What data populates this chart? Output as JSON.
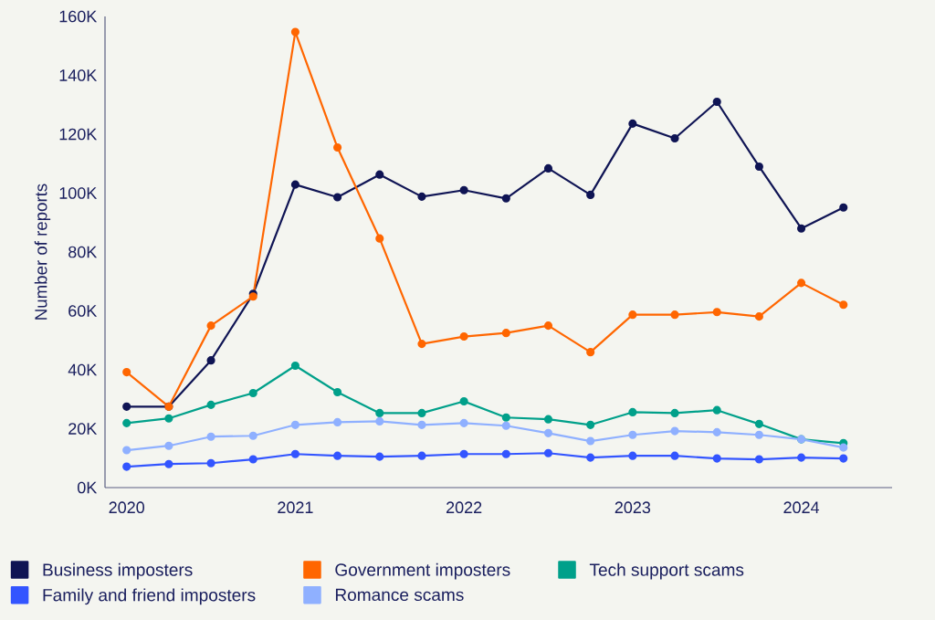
{
  "chart_data": {
    "type": "line",
    "ylabel": "Number of reports",
    "x": [
      "2020-01",
      "2020-04",
      "2020-07",
      "2020-10",
      "2021-01",
      "2021-04",
      "2021-07",
      "2021-10",
      "2022-01",
      "2022-04",
      "2022-07",
      "2022-10",
      "2023-01",
      "2023-04",
      "2023-07",
      "2023-10",
      "2024-01",
      "2024-04"
    ],
    "series": [
      {
        "name": "Business imposters",
        "color": "#0f1454",
        "values": [
          27.5,
          27.5,
          43.2,
          65.8,
          102.9,
          98.6,
          106.3,
          98.8,
          101,
          98.2,
          108.4,
          99.4,
          123.6,
          118.6,
          131,
          109,
          88,
          95.1
        ]
      },
      {
        "name": "Government imposters",
        "color": "#ff6600",
        "values": [
          39.2,
          27.5,
          55,
          64.9,
          154.7,
          115.5,
          84.6,
          48.8,
          51.3,
          52.5,
          55,
          46,
          58.7,
          58.7,
          59.6,
          58.1,
          69.5,
          62.1
        ]
      },
      {
        "name": "Tech support scams",
        "color": "#00a08a",
        "values": [
          21.9,
          23.5,
          28.1,
          32.1,
          41.4,
          32.4,
          25.3,
          25.3,
          29.3,
          23.8,
          23.2,
          21.3,
          25.6,
          25.3,
          26.3,
          21.6,
          16.4,
          15.1
        ]
      },
      {
        "name": "Family and friend imposters",
        "color": "#3355ff",
        "values": [
          7.1,
          8,
          8.3,
          9.6,
          11.4,
          10.8,
          10.5,
          10.8,
          11.4,
          11.4,
          11.7,
          10.2,
          10.8,
          10.8,
          9.9,
          9.6,
          10.2,
          9.9
        ]
      },
      {
        "name": "Romance scams",
        "color": "#8fb0ff",
        "values": [
          12.7,
          14.2,
          17.3,
          17.6,
          21.3,
          22.2,
          22.5,
          21.3,
          21.9,
          21,
          18.5,
          15.8,
          17.9,
          19.2,
          18.8,
          17.9,
          16.4,
          13.6
        ]
      }
    ],
    "xlim": [
      "2019-11-15",
      "2024-07-15"
    ],
    "xticks": [
      "2020",
      "2021",
      "2022",
      "2023",
      "2024"
    ],
    "ylim": [
      0,
      160
    ],
    "yticks": [
      {
        "value": 0,
        "label": "0K"
      },
      {
        "value": 20,
        "label": "20K"
      },
      {
        "value": 40,
        "label": "40K"
      },
      {
        "value": 60,
        "label": "60K"
      },
      {
        "value": 80,
        "label": "80K"
      },
      {
        "value": 100,
        "label": "100K"
      },
      {
        "value": 120,
        "label": "120K"
      },
      {
        "value": 140,
        "label": "140K"
      },
      {
        "value": 160,
        "label": "160K"
      }
    ],
    "grid": false,
    "legend": "bottom",
    "marker": "circle",
    "line_style": "solid"
  }
}
